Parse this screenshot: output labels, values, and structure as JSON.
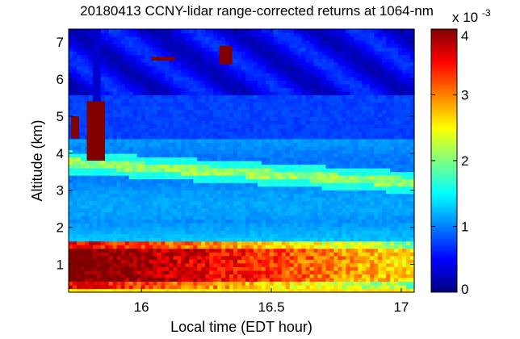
{
  "chart_data": {
    "type": "heatmap",
    "title": "20180413 CCNY-lidar range-corrected returns at 1064-nm",
    "xlabel": "Local time (EDT hour)",
    "ylabel": "Altitude (km)",
    "x_ticks": [
      "16",
      "16.5",
      "17"
    ],
    "x_tick_values": [
      16,
      16.5,
      17
    ],
    "y_ticks": [
      "1",
      "2",
      "3",
      "4",
      "5",
      "6",
      "7"
    ],
    "y_tick_values": [
      1,
      2,
      3,
      4,
      5,
      6,
      7
    ],
    "xlim": [
      15.72,
      17.05
    ],
    "ylim": [
      0.25,
      7.35
    ],
    "colorbar": {
      "colormap": "jet",
      "range": [
        0,
        4
      ],
      "ticks": [
        "0",
        "1",
        "2",
        "3",
        "4"
      ],
      "tick_values": [
        0,
        1,
        2,
        3,
        4
      ],
      "exponent_label": "x 10",
      "exponent": "-3"
    },
    "features": {
      "boundary_layer": {
        "altitude_range_km": [
          0.4,
          1.6
        ],
        "value": 4.0
      },
      "aerosol_layer": {
        "altitude_km": 3.75,
        "value": 2.2
      },
      "clouds": [
        {
          "time_range": [
            15.73,
            15.76
          ],
          "altitude_range_km": [
            4.4,
            5.0
          ]
        },
        {
          "time_range": [
            15.79,
            15.86
          ],
          "altitude_range_km": [
            3.8,
            5.4
          ]
        },
        {
          "time_range": [
            16.04,
            16.13
          ],
          "altitude_range_km": [
            6.5,
            6.6
          ]
        },
        {
          "time_range": [
            16.3,
            16.35
          ],
          "altitude_range_km": [
            6.4,
            6.9
          ]
        }
      ]
    }
  }
}
